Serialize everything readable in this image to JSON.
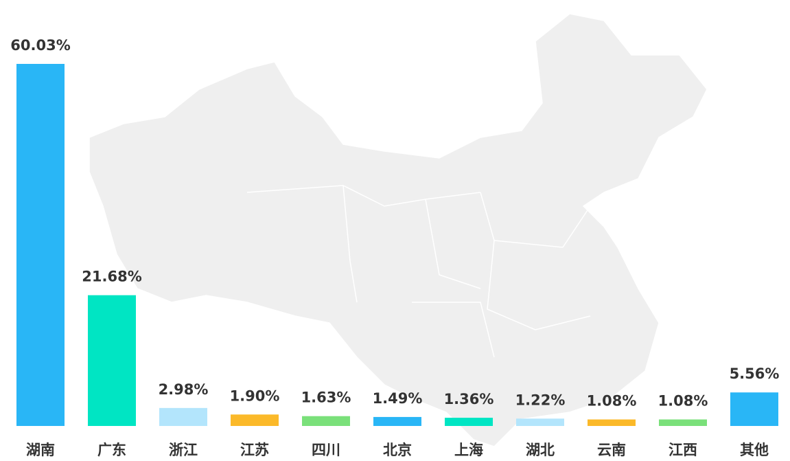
{
  "chart_data": {
    "type": "bar",
    "categories": [
      "湖南",
      "广东",
      "浙江",
      "江苏",
      "四川",
      "北京",
      "上海",
      "湖北",
      "云南",
      "江西",
      "其他"
    ],
    "values": [
      60.03,
      21.68,
      2.98,
      1.9,
      1.63,
      1.49,
      1.36,
      1.22,
      1.08,
      1.08,
      5.56
    ],
    "value_labels": [
      "60.03%",
      "21.68%",
      "2.98%",
      "1.90%",
      "1.63%",
      "1.49%",
      "1.36%",
      "1.22%",
      "1.08%",
      "1.08%",
      "5.56%"
    ],
    "colors": [
      "#29b6f6",
      "#00e5c3",
      "#b3e5fc",
      "#fbb929",
      "#7ae07a",
      "#29b6f6",
      "#00e5c3",
      "#b3e5fc",
      "#fbb929",
      "#7ae07a",
      "#29b6f6"
    ]
  }
}
